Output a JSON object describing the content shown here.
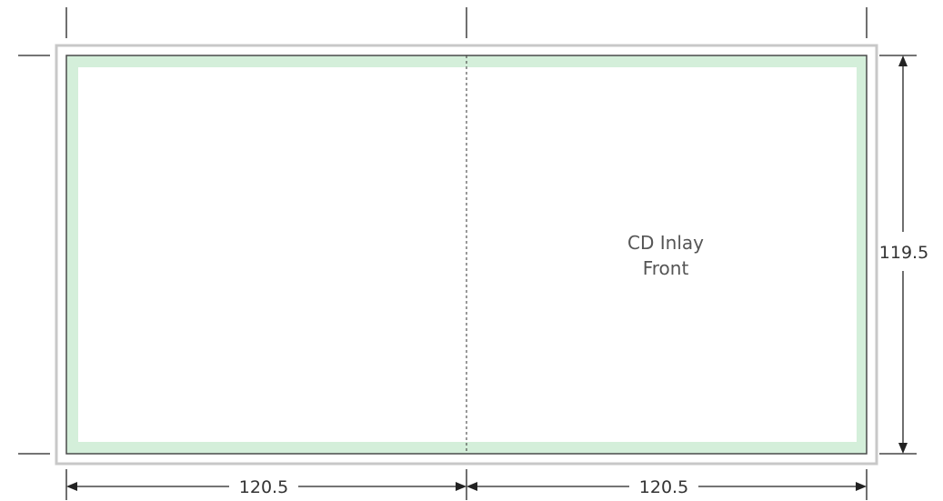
{
  "template": {
    "panel_label_line1": "CD Inlay",
    "panel_label_line2": "Front",
    "colors": {
      "bleed_zone": "#d4efda",
      "trim_line": "#4a4a4a",
      "outer_border": "#c8c8c8",
      "guide_line": "#222222"
    }
  },
  "dimensions": {
    "height_label": "119.5",
    "left_width_label": "120.5",
    "right_width_label": "120.5"
  }
}
